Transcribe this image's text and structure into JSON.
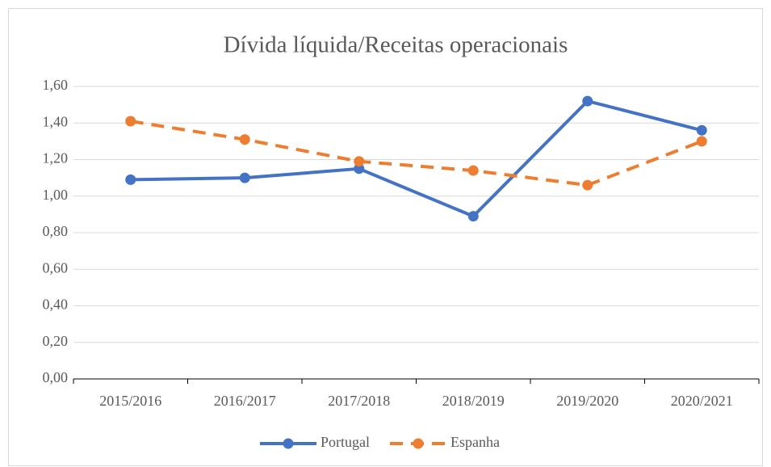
{
  "chart_data": {
    "type": "line",
    "title": "Dívida líquida/Receitas operacionais",
    "categories": [
      "2015/2016",
      "2016/2017",
      "2017/2018",
      "2018/2019",
      "2019/2020",
      "2020/2021"
    ],
    "series": [
      {
        "name": "Portugal",
        "color": "#4472c4",
        "dashed": false,
        "values": [
          1.09,
          1.1,
          1.15,
          0.89,
          1.52,
          1.36
        ]
      },
      {
        "name": "Espanha",
        "color": "#ed7d31",
        "dashed": true,
        "values": [
          1.41,
          1.31,
          1.19,
          1.14,
          1.06,
          1.3
        ]
      }
    ],
    "ylim": [
      0,
      1.6
    ],
    "yticks": [
      {
        "value": 0,
        "label": "0,00"
      },
      {
        "value": 0.2,
        "label": "0,20"
      },
      {
        "value": 0.4,
        "label": "0,40"
      },
      {
        "value": 0.6,
        "label": "0,60"
      },
      {
        "value": 0.8,
        "label": "0,80"
      },
      {
        "value": 1.0,
        "label": "1,00"
      },
      {
        "value": 1.2,
        "label": "1,20"
      },
      {
        "value": 1.4,
        "label": "1,40"
      },
      {
        "value": 1.6,
        "label": "1,60"
      }
    ],
    "grid": true,
    "legend": "bottom"
  }
}
